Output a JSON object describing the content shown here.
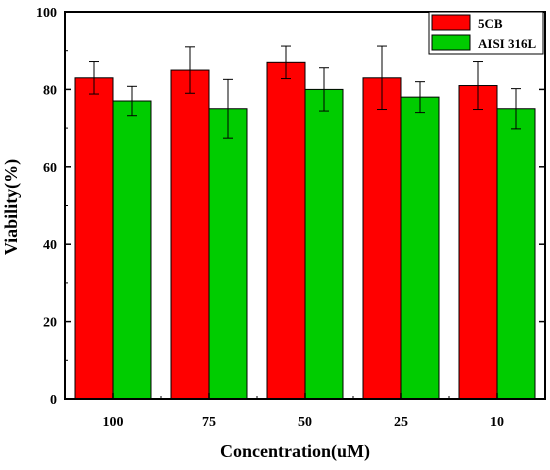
{
  "chart_data": {
    "type": "bar",
    "title": "",
    "xlabel": "Concentration(uM)",
    "ylabel": "Viability(%)",
    "categories": [
      "100",
      "75",
      "50",
      "25",
      "10"
    ],
    "ylim": [
      0,
      100
    ],
    "yticks": [
      0,
      20,
      40,
      60,
      80,
      100
    ],
    "grid": false,
    "legend_position": "top-right",
    "series": [
      {
        "name": "5CB",
        "color": "#ff0000",
        "values": [
          83,
          85,
          87,
          83,
          81
        ],
        "errors": [
          4.2,
          6,
          4.2,
          8.2,
          6.2
        ]
      },
      {
        "name": "AISI 316L",
        "color": "#00cc00",
        "values": [
          77,
          75,
          80,
          78,
          75
        ],
        "errors": [
          3.8,
          7.6,
          5.6,
          4,
          5.2
        ]
      }
    ]
  }
}
